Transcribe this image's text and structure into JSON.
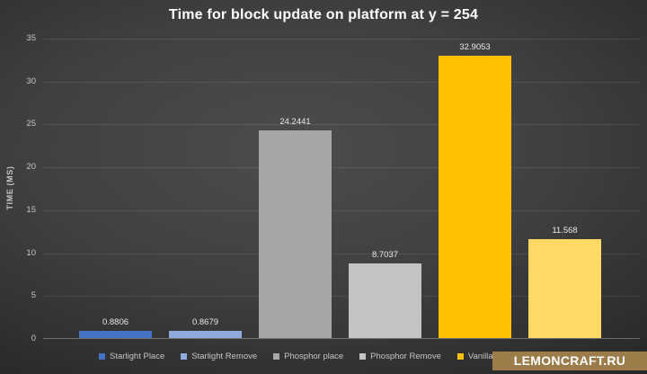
{
  "watermark": {
    "text": "LEMONCRAFT.RU",
    "bg_color": "#9c7d4a"
  },
  "chart_data": {
    "type": "bar",
    "title": "Time for block update on platform at y = 254",
    "xlabel": "",
    "ylabel": "TIME (MS)",
    "ylim": [
      0,
      35
    ],
    "yticks": [
      0,
      5,
      10,
      15,
      20,
      25,
      30,
      35
    ],
    "grid": true,
    "legend_position": "bottom",
    "categories": [
      "Starlight Place",
      "Starlight Remove",
      "Phosphor place",
      "Phosphor Remove",
      "Vanilla place",
      ""
    ],
    "values": [
      0.8806,
      0.8679,
      24.2441,
      8.7037,
      32.9053,
      11.568
    ],
    "data_labels": [
      "0.8806",
      "0.8679",
      "24.2441",
      "8.7037",
      "32.9053",
      "11.568"
    ],
    "colors": [
      "#4472C4",
      "#8FAADC",
      "#A6A6A6",
      "#C3C3C3",
      "#FFC000",
      "#FFD966"
    ],
    "legend": [
      {
        "label": "Starlight Place",
        "color": "#4472C4"
      },
      {
        "label": "Starlight Remove",
        "color": "#8FAADC"
      },
      {
        "label": "Phosphor place",
        "color": "#A6A6A6"
      },
      {
        "label": "Phosphor Remove",
        "color": "#C3C3C3"
      },
      {
        "label": "Vanilla place",
        "color": "#FFC000"
      },
      {
        "label": "",
        "color": "#FFD966"
      }
    ]
  }
}
